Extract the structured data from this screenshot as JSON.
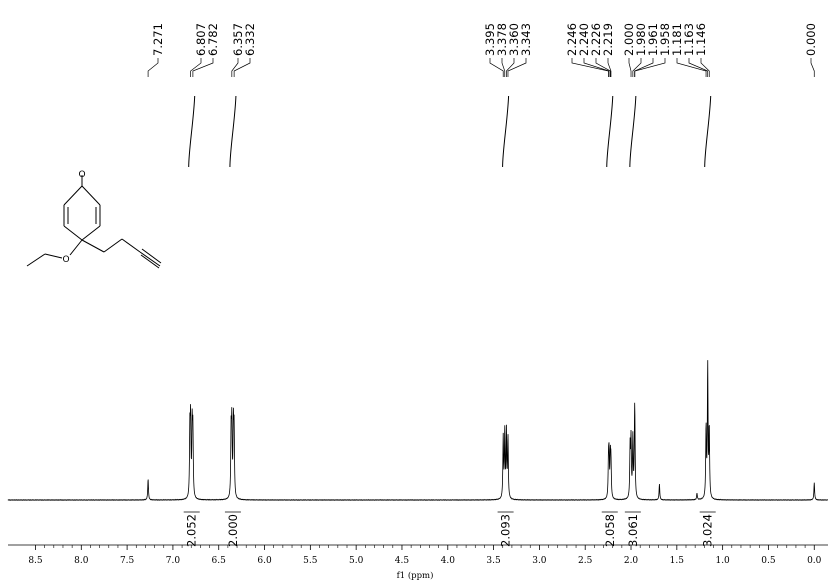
{
  "chart_data": {
    "type": "line",
    "xlabel": "f1 (ppm)",
    "xlim": [
      8.8,
      -0.15
    ],
    "reversed_x": true,
    "x_ticks": [
      "8.5",
      "8.0",
      "7.5",
      "7.0",
      "6.5",
      "6.0",
      "5.5",
      "5.0",
      "4.5",
      "4.0",
      "3.5",
      "3.0",
      "2.5",
      "2.0",
      "1.5",
      "1.0",
      "0.5",
      "0.0"
    ],
    "grid": false,
    "peak_labels": [
      {
        "group": "a",
        "values": [
          "7.271"
        ]
      },
      {
        "group": "b",
        "values": [
          "6.807",
          "6.782"
        ]
      },
      {
        "group": "c",
        "values": [
          "6.357",
          "6.332"
        ]
      },
      {
        "group": "d",
        "values": [
          "3.395",
          "3.378",
          "3.360",
          "3.343"
        ]
      },
      {
        "group": "e",
        "values": [
          "2.246",
          "2.240",
          "2.226",
          "2.219",
          "2.000",
          "1.980",
          "1.961",
          "1.958",
          "1.181",
          "1.163",
          "1.146"
        ]
      },
      {
        "group": "f",
        "values": [
          "0.000"
        ]
      }
    ],
    "integrals": [
      {
        "x": 6.795,
        "value": "2.052"
      },
      {
        "x": 6.345,
        "value": "2.000"
      },
      {
        "x": 3.369,
        "value": "2.093"
      },
      {
        "x": 2.232,
        "value": "2.058"
      },
      {
        "x": 1.98,
        "value": "3.061"
      },
      {
        "x": 1.163,
        "value": "3.024"
      }
    ],
    "peaks": [
      {
        "ppm": 7.271,
        "height": 0.16
      },
      {
        "ppm": 6.815,
        "height": 0.5
      },
      {
        "ppm": 6.807,
        "height": 0.55
      },
      {
        "ppm": 6.79,
        "height": 0.52
      },
      {
        "ppm": 6.782,
        "height": 0.48
      },
      {
        "ppm": 6.365,
        "height": 0.48
      },
      {
        "ppm": 6.357,
        "height": 0.53
      },
      {
        "ppm": 6.34,
        "height": 0.53
      },
      {
        "ppm": 6.332,
        "height": 0.48
      },
      {
        "ppm": 3.395,
        "height": 0.46
      },
      {
        "ppm": 3.378,
        "height": 0.5
      },
      {
        "ppm": 3.36,
        "height": 0.5
      },
      {
        "ppm": 3.343,
        "height": 0.46
      },
      {
        "ppm": 2.246,
        "height": 0.26
      },
      {
        "ppm": 2.24,
        "height": 0.3
      },
      {
        "ppm": 2.226,
        "height": 0.3
      },
      {
        "ppm": 2.219,
        "height": 0.26
      },
      {
        "ppm": 2.01,
        "height": 0.38
      },
      {
        "ppm": 2.0,
        "height": 0.43
      },
      {
        "ppm": 1.98,
        "height": 0.45
      },
      {
        "ppm": 1.961,
        "height": 0.42
      },
      {
        "ppm": 1.958,
        "height": 0.36
      },
      {
        "ppm": 1.69,
        "height": 0.12
      },
      {
        "ppm": 1.28,
        "height": 0.05
      },
      {
        "ppm": 1.181,
        "height": 0.53
      },
      {
        "ppm": 1.163,
        "height": 1.0
      },
      {
        "ppm": 1.146,
        "height": 0.52
      },
      {
        "ppm": 0.0,
        "height": 0.13
      }
    ]
  },
  "molecule": {
    "atom_labels": [
      "O",
      "O"
    ]
  },
  "colors": {
    "spectrum": "#000000",
    "text": "#000000",
    "background": "#ffffff"
  }
}
